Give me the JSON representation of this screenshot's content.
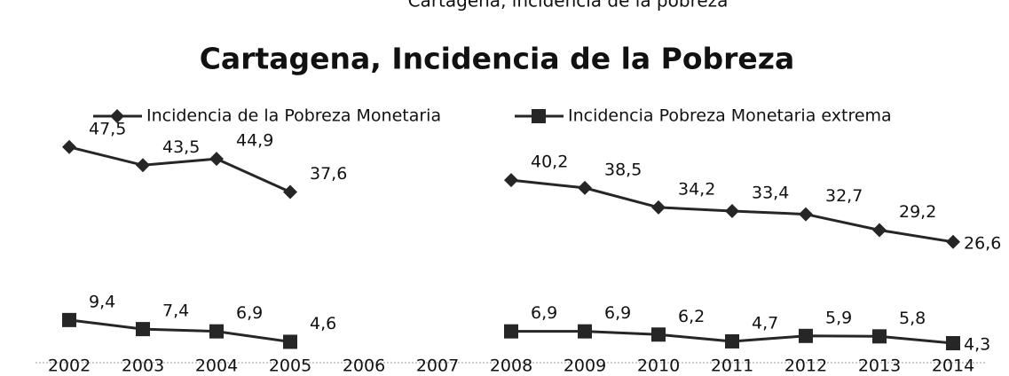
{
  "chart_data": {
    "type": "line",
    "caption": "Cartagena, incidencia de la pobreza",
    "title": "Cartagena, Incidencia de la Pobreza",
    "categories": [
      "2002",
      "2003",
      "2004",
      "2005",
      "2006",
      "2007",
      "2008",
      "2009",
      "2010",
      "2011",
      "2012",
      "2013",
      "2014"
    ],
    "series": [
      {
        "name": "Incidencia de la Pobreza Monetaria",
        "color": "#262626",
        "marker": "diamond",
        "values": [
          47.5,
          43.5,
          44.9,
          37.6,
          null,
          null,
          40.2,
          38.5,
          34.2,
          33.4,
          32.7,
          29.2,
          26.6
        ],
        "value_labels": [
          "47,5",
          "43,5",
          "44,9",
          "37,6",
          null,
          null,
          "40,2",
          "38,5",
          "34,2",
          "33,4",
          "32,7",
          "29,2",
          "26,6"
        ]
      },
      {
        "name": "Incidencia Pobreza Monetaria extrema",
        "color": "#262626",
        "marker": "square",
        "values": [
          9.4,
          7.4,
          6.9,
          4.6,
          null,
          null,
          6.9,
          6.9,
          6.2,
          4.7,
          5.9,
          5.8,
          4.3
        ],
        "value_labels": [
          "9,4",
          "7,4",
          "6,9",
          "4,6",
          null,
          null,
          "6,9",
          "6,9",
          "6,2",
          "4,7",
          "5,9",
          "5,8",
          "4,3"
        ]
      }
    ],
    "ylim": [
      0,
      50
    ],
    "legend": "top"
  }
}
